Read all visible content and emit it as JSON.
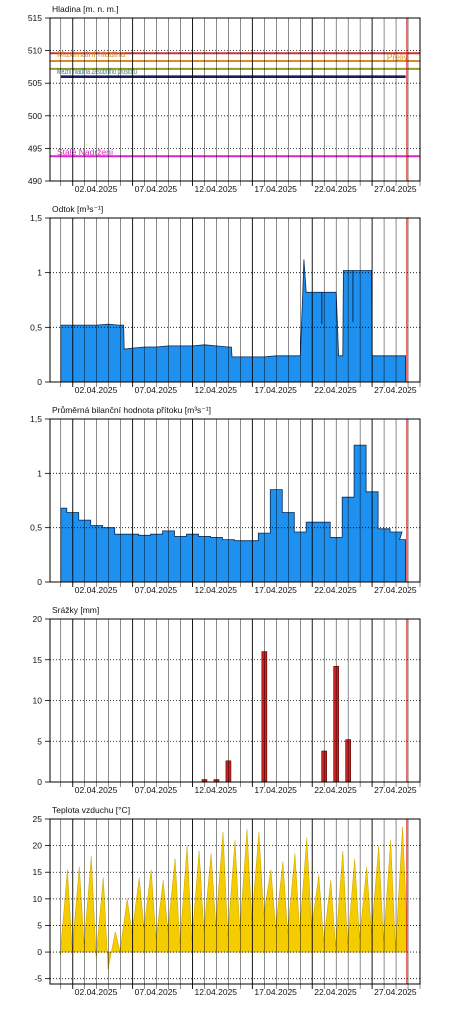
{
  "x_tick_labels": [
    "02.04.2025",
    "07.04.2025",
    "12.04.2025",
    "17.04.2025",
    "22.04.2025",
    "27.04.2025"
  ],
  "colors": {
    "bar_blue": "#1e90ef",
    "bar_red": "#cc2222",
    "area_yellow": "#f5cc00",
    "now_line": "#e02020",
    "grid": "#000000",
    "max_line": "#cc3333",
    "flood_line": "#e08a1e",
    "mid_line": "#9a9a20",
    "current_level": "#1c1c60",
    "reserved_line": "#dd22cc"
  },
  "chart_data": [
    {
      "type": "line",
      "title": "Hladina [m. n. m.]",
      "ylim": [
        490,
        515
      ],
      "yticks": [
        490,
        495,
        500,
        505,
        510,
        515
      ],
      "annotations": [
        {
          "label": "Maximální hladina",
          "y": 509.6
        },
        {
          "label": "Přeliv",
          "y": 508.4
        },
        {
          "label": "Mezní hladina zásobního prostoru",
          "y": 507.2
        },
        {
          "label": "Stálé Nadržení",
          "y": 493.8
        }
      ],
      "series": [
        {
          "x": [
            1,
            29.8
          ],
          "y": [
            506.0,
            506.0
          ]
        }
      ]
    },
    {
      "type": "area",
      "title": "Odtok [m³s⁻¹]",
      "ylim": [
        0,
        1.5
      ],
      "yticks": [
        0,
        0.5,
        1,
        1.5
      ],
      "yticklabels": [
        "0",
        "0,5",
        "1",
        "1,5"
      ],
      "series": [
        {
          "x": [
            1,
            2,
            3,
            4,
            5,
            5.8,
            6.3,
            7,
            8,
            9,
            10,
            11,
            12,
            13,
            14,
            15,
            15.3,
            16,
            17,
            18,
            19,
            20,
            21,
            21.2,
            21.3,
            21.5,
            22,
            23,
            24,
            24.2,
            24.3,
            24.6,
            25,
            26,
            26.5,
            27,
            28,
            29,
            29.8
          ],
          "y": [
            0.52,
            0.52,
            0.52,
            0.52,
            0.53,
            0.52,
            0.3,
            0.31,
            0.32,
            0.32,
            0.33,
            0.33,
            0.33,
            0.34,
            0.33,
            0.32,
            0.23,
            0.23,
            0.23,
            0.23,
            0.24,
            0.24,
            0.24,
            0.8,
            1.12,
            0.82,
            0.82,
            0.82,
            0.82,
            0.24,
            0.24,
            1.02,
            1.02,
            1.02,
            1.02,
            0.24,
            0.24,
            0.24,
            0.24
          ]
        }
      ]
    },
    {
      "type": "area",
      "title": "Průměrná bilanční hodnota přítoku [m³s⁻¹]",
      "ylim": [
        0,
        1.5
      ],
      "yticks": [
        0,
        0.5,
        1,
        1.5
      ],
      "yticklabels": [
        "0",
        "0,5",
        "1",
        "1,5"
      ],
      "series": [
        {
          "x": [
            1,
            2,
            3,
            4,
            5,
            6,
            7,
            8,
            9,
            10,
            11,
            12,
            13,
            14,
            15,
            16,
            17,
            18,
            19,
            20,
            21,
            22,
            23,
            24,
            25,
            26,
            27,
            28,
            29,
            29.8
          ],
          "y": [
            0.68,
            0.64,
            0.57,
            0.52,
            0.5,
            0.44,
            0.44,
            0.43,
            0.44,
            0.47,
            0.42,
            0.44,
            0.42,
            0.41,
            0.39,
            0.38,
            0.38,
            0.45,
            0.85,
            0.64,
            0.46,
            0.55,
            0.55,
            0.41,
            0.78,
            1.26,
            0.83,
            0.49,
            0.46,
            0.39
          ]
        }
      ]
    },
    {
      "type": "bar",
      "title": "Srážky [mm]",
      "ylim": [
        0,
        20
      ],
      "yticks": [
        0,
        5,
        10,
        15,
        20
      ],
      "x": [
        13.0,
        14.0,
        15.0,
        18.0,
        23.0,
        24.0,
        25.0
      ],
      "values": [
        0.3,
        0.3,
        2.6,
        16.0,
        3.8,
        14.2,
        5.2
      ]
    },
    {
      "type": "area",
      "title": "Teplota vzduchu [°C]",
      "ylim": [
        -6,
        25
      ],
      "yticks": [
        -5,
        0,
        5,
        10,
        15,
        20,
        25
      ],
      "daily_min": [
        -0.5,
        0.5,
        1.5,
        -0.8,
        -3.2,
        0.2,
        3.5,
        4.5,
        2.5,
        4.0,
        1.5,
        2.0,
        4.0,
        5.0,
        3.0,
        4.0,
        6.0,
        7.0,
        4.5,
        3.5,
        4.0,
        4.5,
        2.0,
        1.0,
        1.5,
        2.5,
        3.5,
        2.0,
        0.5
      ],
      "daily_max": [
        15.5,
        16.0,
        18.0,
        14.0,
        3.8,
        10.0,
        14.0,
        15.5,
        13.5,
        17.5,
        20.0,
        19.0,
        18.5,
        22.5,
        21.0,
        23.0,
        22.5,
        15.5,
        17.0,
        18.5,
        21.5,
        14.5,
        13.5,
        19.0,
        17.5,
        16.0,
        20.0,
        21.0,
        23.5
      ]
    }
  ]
}
